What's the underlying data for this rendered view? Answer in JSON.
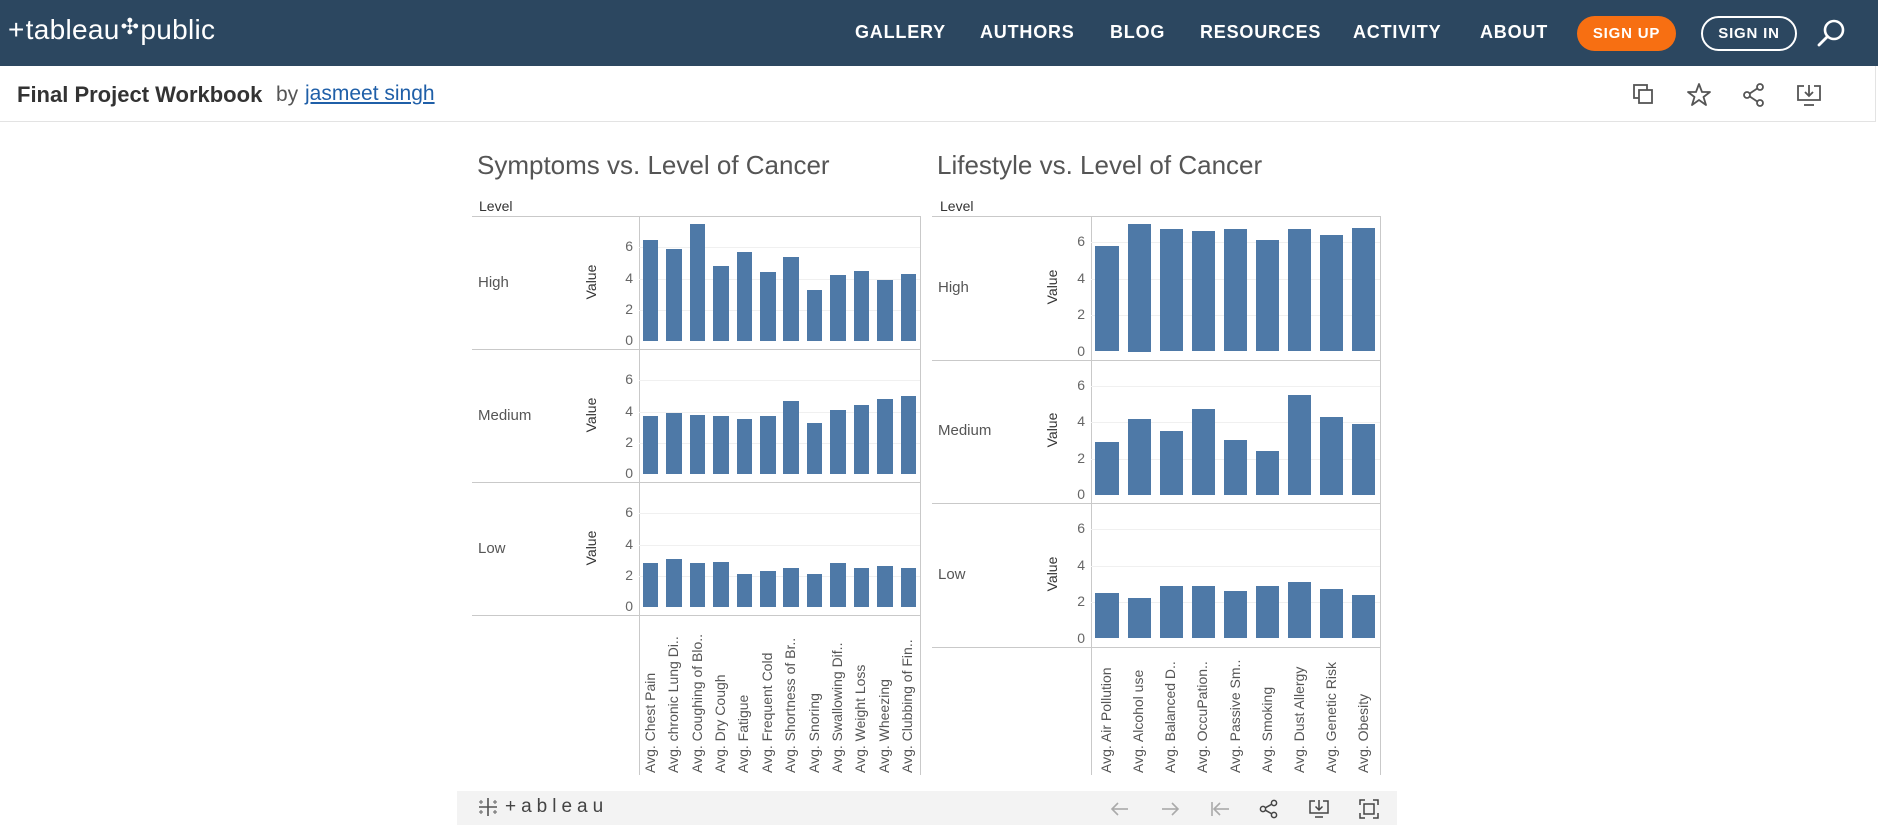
{
  "nav": {
    "logo_text": "tableau",
    "logo_text2": "public",
    "links": [
      "GALLERY",
      "AUTHORS",
      "BLOG",
      "RESOURCES",
      "ACTIVITY",
      "ABOUT"
    ],
    "signup": "SIGN UP",
    "signin": "SIGN IN",
    "search_icon": "search-icon"
  },
  "workbook": {
    "title": "Final Project Workbook",
    "by": "by",
    "author": "jasmeet singh",
    "actions": [
      "copy-icon",
      "star-icon",
      "share-icon",
      "download-icon"
    ]
  },
  "dashboard": {
    "left_title": "Symptoms vs. Level of Cancer",
    "right_title": "Lifestyle vs. Level of Cancer",
    "level_header": "Level",
    "axis_title": "Value"
  },
  "chart_data": [
    {
      "type": "bar",
      "title": "Symptoms vs. Level of Cancer",
      "row_header": "Level",
      "ylabel": "Value",
      "ylim": [
        0,
        7.5
      ],
      "yticks": [
        0,
        2,
        4,
        6
      ],
      "categories": [
        "Avg. Chest Pain",
        "Avg. chronic Lung Di..",
        "Avg. Coughing of Blo..",
        "Avg. Dry Cough",
        "Avg. Fatigue",
        "Avg. Frequent Cold",
        "Avg. Shortness of Br..",
        "Avg. Snoring",
        "Avg. Swallowing Dif..",
        "Avg. Weight Loss",
        "Avg. Wheezing",
        "Avg. Clubbing of Fin.."
      ],
      "series": [
        {
          "name": "High",
          "values": [
            6.5,
            5.9,
            7.5,
            4.8,
            5.7,
            4.4,
            5.4,
            3.3,
            4.2,
            4.5,
            3.9,
            4.3
          ]
        },
        {
          "name": "Medium",
          "values": [
            3.7,
            3.9,
            3.8,
            3.7,
            3.5,
            3.7,
            4.7,
            3.3,
            4.1,
            4.4,
            4.8,
            5.0
          ]
        },
        {
          "name": "Low",
          "values": [
            2.8,
            3.1,
            2.8,
            2.9,
            2.1,
            2.3,
            2.5,
            2.1,
            2.8,
            2.5,
            2.6,
            2.5
          ]
        }
      ]
    },
    {
      "type": "bar",
      "title": "Lifestyle vs. Level of Cancer",
      "row_header": "Level",
      "ylabel": "Value",
      "ylim": [
        0,
        7
      ],
      "yticks": [
        0,
        2,
        4,
        6
      ],
      "categories": [
        "Avg. Air Pollution",
        "Avg. Alcohol use",
        "Avg. Balanced D..",
        "Avg. OccuPation..",
        "Avg. Passive Sm..",
        "Avg. Smoking",
        "Avg. Dust Allergy",
        "Avg. Genetic Risk",
        "Avg. Obesity"
      ],
      "series": [
        {
          "name": "High",
          "values": [
            5.8,
            7.0,
            6.7,
            6.6,
            6.7,
            6.1,
            6.7,
            6.4,
            6.8
          ]
        },
        {
          "name": "Medium",
          "values": [
            2.9,
            4.2,
            3.5,
            4.7,
            3.0,
            2.4,
            5.5,
            4.3,
            3.9
          ]
        },
        {
          "name": "Low",
          "values": [
            2.5,
            2.2,
            2.9,
            2.9,
            2.6,
            2.9,
            3.1,
            2.7,
            2.4
          ]
        }
      ]
    }
  ],
  "bottom": {
    "brand": "+ableau",
    "icons": [
      "undo-icon",
      "redo-icon",
      "revert-icon",
      "share-icon",
      "download-icon",
      "fullscreen-icon"
    ]
  }
}
